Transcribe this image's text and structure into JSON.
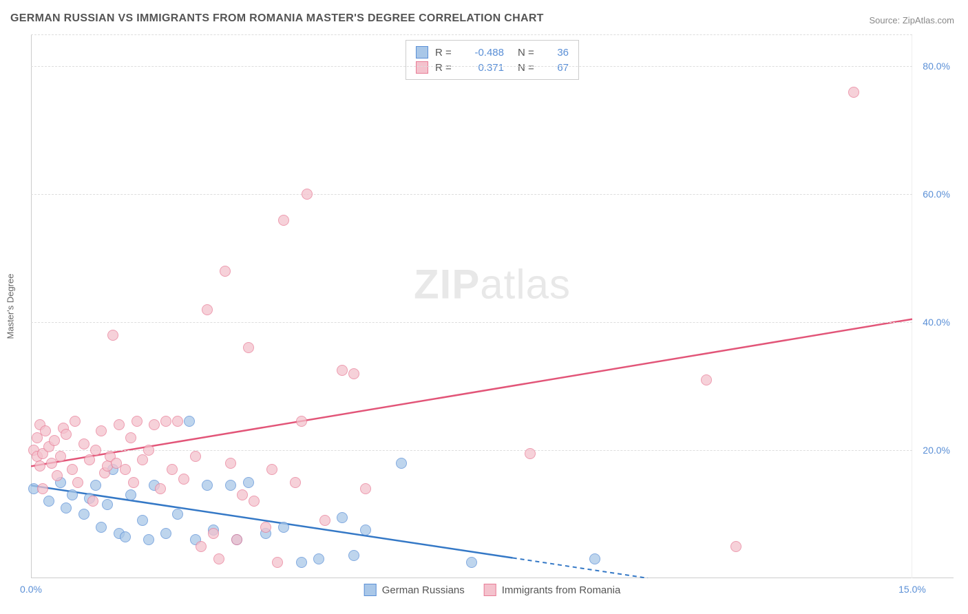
{
  "title": "GERMAN RUSSIAN VS IMMIGRANTS FROM ROMANIA MASTER'S DEGREE CORRELATION CHART",
  "source": "Source: ZipAtlas.com",
  "watermark": {
    "zip": "ZIP",
    "atlas": "atlas"
  },
  "chart": {
    "type": "scatter",
    "y_axis_title": "Master's Degree",
    "xlim": [
      0,
      15
    ],
    "ylim": [
      0,
      85
    ],
    "x_ticks": [
      {
        "val": 0,
        "label": "0.0%"
      },
      {
        "val": 15,
        "label": "15.0%"
      }
    ],
    "y_ticks": [
      {
        "val": 20,
        "label": "20.0%"
      },
      {
        "val": 40,
        "label": "40.0%"
      },
      {
        "val": 60,
        "label": "60.0%"
      },
      {
        "val": 80,
        "label": "80.0%"
      }
    ],
    "background_color": "#ffffff",
    "grid_color": "#dddddd",
    "axis_color": "#cccccc",
    "tick_label_color": "#5a8fd6",
    "marker_radius": 8,
    "series": [
      {
        "name": "German Russians",
        "fill": "#a9c7e8",
        "stroke": "#5a8fd6",
        "trend_color": "#3478c6",
        "r": -0.488,
        "n": 36,
        "trend": {
          "x1": 0,
          "y1": 14.5,
          "x2": 10.5,
          "y2": 0,
          "dash_from_x": 8.2
        },
        "points": [
          [
            0.05,
            14
          ],
          [
            0.3,
            12
          ],
          [
            0.5,
            15
          ],
          [
            0.6,
            11
          ],
          [
            0.7,
            13
          ],
          [
            0.9,
            10
          ],
          [
            1.0,
            12.5
          ],
          [
            1.1,
            14.5
          ],
          [
            1.2,
            8
          ],
          [
            1.3,
            11.5
          ],
          [
            1.4,
            17
          ],
          [
            1.5,
            7
          ],
          [
            1.6,
            6.5
          ],
          [
            1.7,
            13
          ],
          [
            1.9,
            9
          ],
          [
            2.0,
            6
          ],
          [
            2.1,
            14.5
          ],
          [
            2.3,
            7
          ],
          [
            2.5,
            10
          ],
          [
            2.7,
            24.5
          ],
          [
            2.8,
            6
          ],
          [
            3.0,
            14.5
          ],
          [
            3.1,
            7.5
          ],
          [
            3.4,
            14.5
          ],
          [
            3.5,
            6
          ],
          [
            3.7,
            15
          ],
          [
            4.0,
            7
          ],
          [
            4.3,
            8
          ],
          [
            4.6,
            2.5
          ],
          [
            4.9,
            3
          ],
          [
            5.3,
            9.5
          ],
          [
            5.5,
            3.5
          ],
          [
            5.7,
            7.5
          ],
          [
            6.3,
            18
          ],
          [
            7.5,
            2.5
          ],
          [
            9.6,
            3
          ]
        ]
      },
      {
        "name": "Immigrants from Romania",
        "fill": "#f4c2cd",
        "stroke": "#e87c96",
        "trend_color": "#e25578",
        "r": 0.371,
        "n": 67,
        "trend": {
          "x1": 0,
          "y1": 17.5,
          "x2": 15,
          "y2": 40.5
        },
        "points": [
          [
            0.05,
            20
          ],
          [
            0.1,
            19
          ],
          [
            0.1,
            22
          ],
          [
            0.15,
            17.5
          ],
          [
            0.15,
            24
          ],
          [
            0.2,
            19.5
          ],
          [
            0.2,
            14
          ],
          [
            0.25,
            23
          ],
          [
            0.3,
            20.5
          ],
          [
            0.35,
            18
          ],
          [
            0.4,
            21.5
          ],
          [
            0.45,
            16
          ],
          [
            0.5,
            19
          ],
          [
            0.55,
            23.5
          ],
          [
            0.6,
            22.5
          ],
          [
            0.7,
            17
          ],
          [
            0.75,
            24.5
          ],
          [
            0.8,
            15
          ],
          [
            0.9,
            21
          ],
          [
            1.0,
            18.5
          ],
          [
            1.05,
            12
          ],
          [
            1.1,
            20
          ],
          [
            1.2,
            23
          ],
          [
            1.25,
            16.5
          ],
          [
            1.3,
            17.5
          ],
          [
            1.35,
            19
          ],
          [
            1.4,
            38
          ],
          [
            1.45,
            18
          ],
          [
            1.5,
            24
          ],
          [
            1.6,
            17
          ],
          [
            1.7,
            22
          ],
          [
            1.75,
            15
          ],
          [
            1.8,
            24.5
          ],
          [
            1.9,
            18.5
          ],
          [
            2.0,
            20
          ],
          [
            2.1,
            24
          ],
          [
            2.2,
            14
          ],
          [
            2.3,
            24.5
          ],
          [
            2.4,
            17
          ],
          [
            2.5,
            24.5
          ],
          [
            2.6,
            15.5
          ],
          [
            2.8,
            19
          ],
          [
            2.9,
            5
          ],
          [
            3.0,
            42
          ],
          [
            3.1,
            7
          ],
          [
            3.2,
            3
          ],
          [
            3.3,
            48
          ],
          [
            3.4,
            18
          ],
          [
            3.5,
            6
          ],
          [
            3.6,
            13
          ],
          [
            3.7,
            36
          ],
          [
            3.8,
            12
          ],
          [
            4.0,
            8
          ],
          [
            4.1,
            17
          ],
          [
            4.2,
            2.5
          ],
          [
            4.3,
            56
          ],
          [
            4.5,
            15
          ],
          [
            4.6,
            24.5
          ],
          [
            4.7,
            60
          ],
          [
            5.0,
            9
          ],
          [
            5.3,
            32.5
          ],
          [
            5.5,
            32
          ],
          [
            5.7,
            14
          ],
          [
            8.5,
            19.5
          ],
          [
            11.5,
            31
          ],
          [
            12.0,
            5
          ],
          [
            14.0,
            76
          ]
        ]
      }
    ],
    "legend_top_labels": {
      "r": "R =",
      "n": "N ="
    },
    "legend_bottom": [
      "German Russians",
      "Immigrants from Romania"
    ]
  }
}
